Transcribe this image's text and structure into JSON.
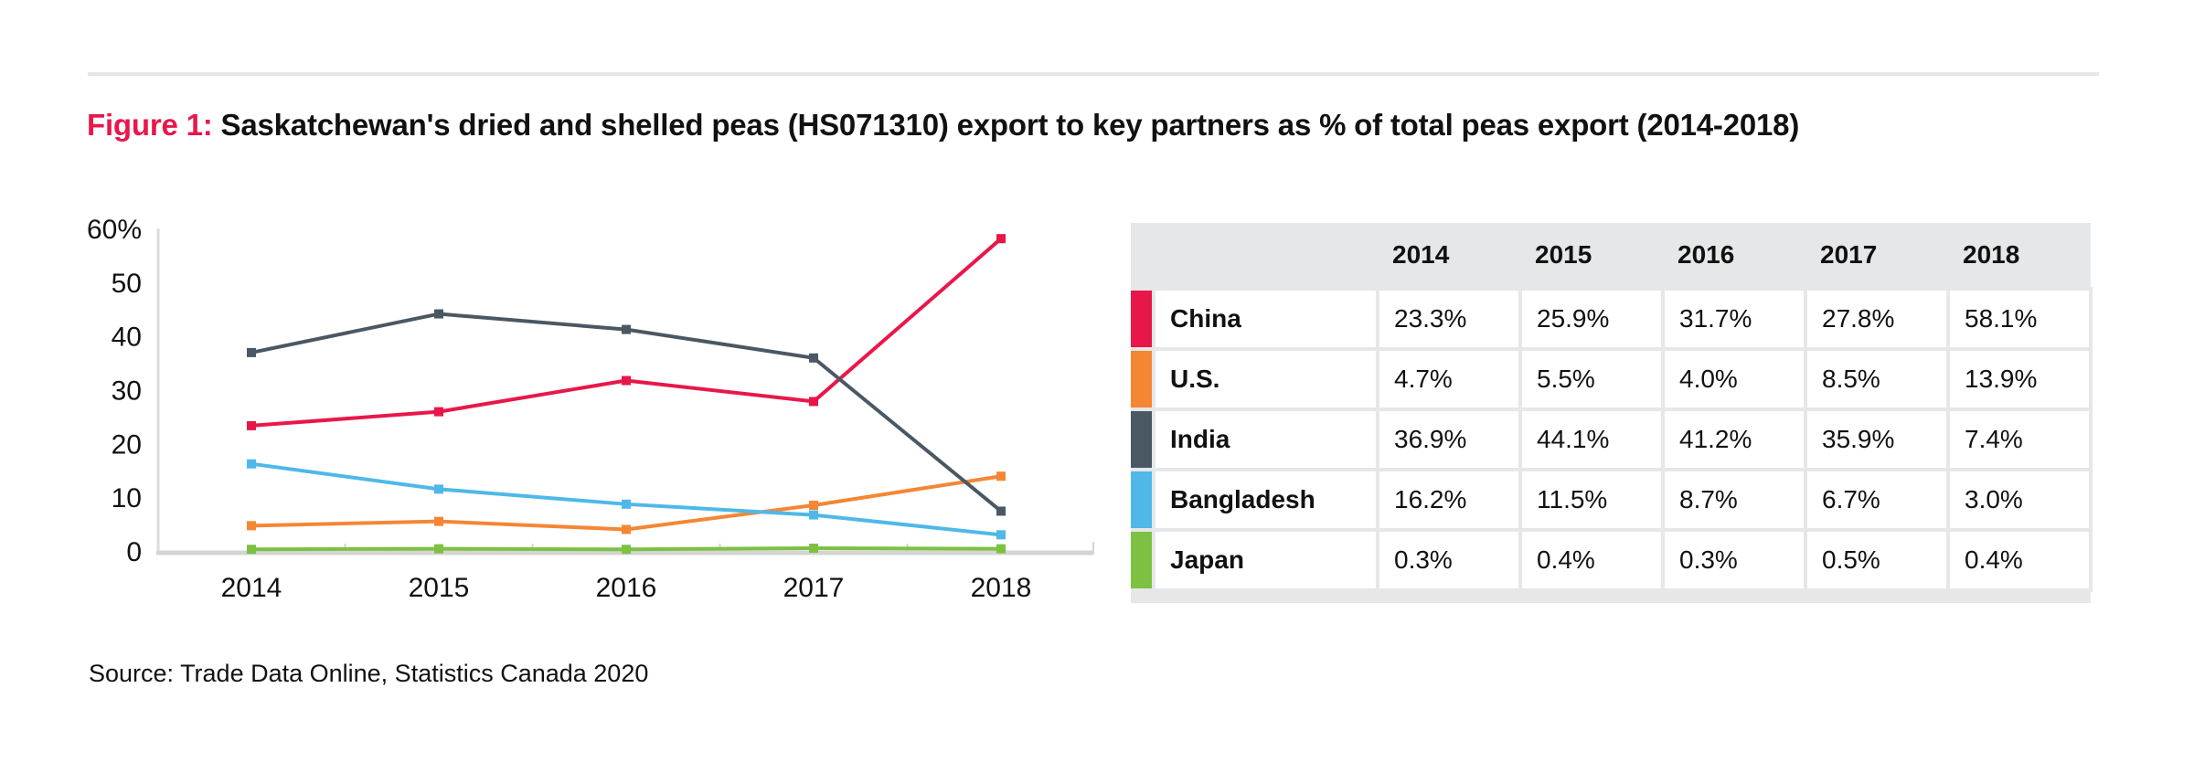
{
  "title": {
    "prefix": "Figure 1",
    "sep": ": ",
    "text": "Saskatchewan's dried and shelled peas (HS071310) export to key partners as % of total peas export (2014-2018)"
  },
  "source": "Source: Trade Data Online, Statistics Canada 2020",
  "chart_data": {
    "type": "line",
    "title": "Saskatchewan's dried and shelled peas (HS071310) export to key partners as % of total peas export (2014-2018)",
    "xlabel": "",
    "ylabel": "",
    "x": [
      "2014",
      "2015",
      "2016",
      "2017",
      "2018"
    ],
    "ylim": [
      0,
      60
    ],
    "yticks": [
      "0",
      "10",
      "20",
      "30",
      "40",
      "50",
      "60%"
    ],
    "yticks_values": [
      0,
      10,
      20,
      30,
      40,
      50,
      60
    ],
    "grid": false,
    "series": [
      {
        "name": "China",
        "color": "#e8174a",
        "values": [
          23.3,
          25.9,
          31.7,
          27.8,
          58.1
        ]
      },
      {
        "name": "U.S.",
        "color": "#f58634",
        "values": [
          4.7,
          5.5,
          4.0,
          8.5,
          13.9
        ]
      },
      {
        "name": "India",
        "color": "#4a5864",
        "values": [
          36.9,
          44.1,
          41.2,
          35.9,
          7.4
        ]
      },
      {
        "name": "Bangladesh",
        "color": "#4fb8e8",
        "values": [
          16.2,
          11.5,
          8.7,
          6.7,
          3.0
        ]
      },
      {
        "name": "Japan",
        "color": "#7dc142",
        "values": [
          0.3,
          0.4,
          0.3,
          0.5,
          0.4
        ]
      }
    ]
  },
  "table": {
    "headers": [
      "2014",
      "2015",
      "2016",
      "2017",
      "2018"
    ],
    "rows": [
      {
        "label": "China",
        "color": "#e8174a",
        "cells": [
          "23.3%",
          "25.9%",
          "31.7%",
          "27.8%",
          "58.1%"
        ]
      },
      {
        "label": "U.S.",
        "color": "#f58634",
        "cells": [
          "4.7%",
          "5.5%",
          "4.0%",
          "8.5%",
          "13.9%"
        ]
      },
      {
        "label": "India",
        "color": "#4a5864",
        "cells": [
          "36.9%",
          "44.1%",
          "41.2%",
          "35.9%",
          "7.4%"
        ]
      },
      {
        "label": "Bangladesh",
        "color": "#4fb8e8",
        "cells": [
          "16.2%",
          "11.5%",
          "8.7%",
          "6.7%",
          "3.0%"
        ]
      },
      {
        "label": "Japan",
        "color": "#7dc142",
        "cells": [
          "0.3%",
          "0.4%",
          "0.3%",
          "0.5%",
          "0.4%"
        ]
      }
    ]
  }
}
